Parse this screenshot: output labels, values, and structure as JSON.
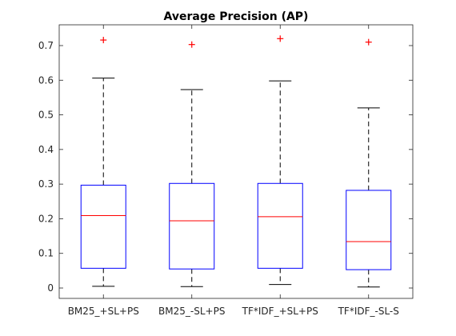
{
  "chart_data": {
    "type": "box",
    "title": "Average Precision (AP)",
    "xlabel": "",
    "ylabel": "",
    "categories": [
      "BM25_+SL+PS",
      "BM25_-SL+PS",
      "TF*IDF_+SL+PS",
      "TF*IDF_-SL-S"
    ],
    "boxes": [
      {
        "whisker_low": 0.005,
        "q1": 0.057,
        "median": 0.209,
        "q3": 0.297,
        "whisker_high": 0.606,
        "outliers": [
          0.716
        ]
      },
      {
        "whisker_low": 0.004,
        "q1": 0.055,
        "median": 0.194,
        "q3": 0.302,
        "whisker_high": 0.573,
        "outliers": [
          0.703
        ]
      },
      {
        "whisker_low": 0.01,
        "q1": 0.057,
        "median": 0.206,
        "q3": 0.302,
        "whisker_high": 0.598,
        "outliers": [
          0.72
        ]
      },
      {
        "whisker_low": 0.003,
        "q1": 0.053,
        "median": 0.134,
        "q3": 0.282,
        "whisker_high": 0.52,
        "outliers": [
          0.71
        ]
      }
    ],
    "ylim": [
      -0.03,
      0.76
    ],
    "yticks": [
      "0",
      "0.1",
      "0.2",
      "0.3",
      "0.4",
      "0.5",
      "0.6",
      "0.7"
    ],
    "ytick_values": [
      0,
      0.1,
      0.2,
      0.3,
      0.4,
      0.5,
      0.6,
      0.7
    ],
    "grid": false,
    "colors": {
      "box": "#0000ff",
      "median": "#ff0000",
      "whisker": "#000000",
      "outlier": "#ff0000"
    }
  }
}
